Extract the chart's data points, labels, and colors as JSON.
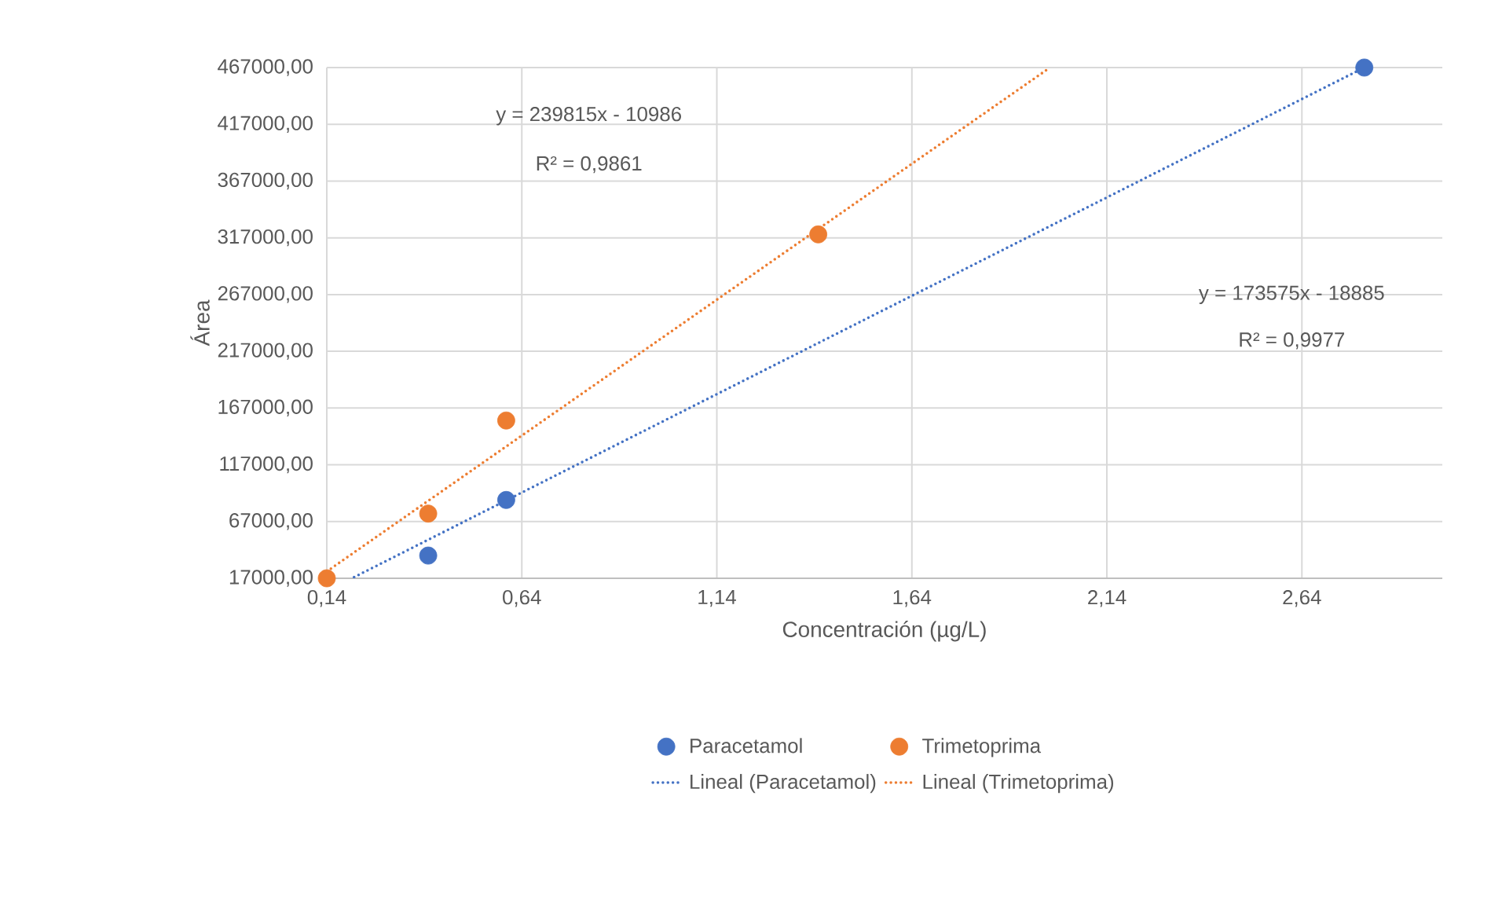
{
  "chart_data": {
    "type": "scatter",
    "xlabel": "Concentración (µg/L)",
    "ylabel": "Área",
    "xlim": [
      0.14,
      3.0
    ],
    "xticks": [
      {
        "value": 0.14,
        "label": "0,14"
      },
      {
        "value": 0.64,
        "label": "0,64"
      },
      {
        "value": 1.14,
        "label": "1,14"
      },
      {
        "value": 1.64,
        "label": "1,64"
      },
      {
        "value": 2.14,
        "label": "2,14"
      },
      {
        "value": 2.64,
        "label": "2,64"
      }
    ],
    "ylim": [
      17000,
      467000
    ],
    "yticks": [
      {
        "value": 17000,
        "label": "17000,00"
      },
      {
        "value": 67000,
        "label": "67000,00"
      },
      {
        "value": 117000,
        "label": "117000,00"
      },
      {
        "value": 167000,
        "label": "167000,00"
      },
      {
        "value": 217000,
        "label": "217000,00"
      },
      {
        "value": 267000,
        "label": "267000,00"
      },
      {
        "value": 317000,
        "label": "317000,00"
      },
      {
        "value": 367000,
        "label": "367000,00"
      },
      {
        "value": 417000,
        "label": "417000,00"
      },
      {
        "value": 467000,
        "label": "467000,00"
      }
    ],
    "grid": true,
    "legend": "bottom",
    "series": [
      {
        "name": "Paracetamol",
        "marker": "circle",
        "color": "#4472c4",
        "x": [
          0.4,
          0.6,
          2.8
        ],
        "values": [
          37000,
          86000,
          467000
        ]
      },
      {
        "name": "Trimetoprima",
        "marker": "circle",
        "color": "#ed7d31",
        "x": [
          0.14,
          0.4,
          0.6,
          1.4
        ],
        "values": [
          17000,
          74000,
          156000,
          320000
        ]
      },
      {
        "name": "Lineal (Paracetamol)",
        "type": "line",
        "marker": "none",
        "line_style": "dotted",
        "color": "#4472c4",
        "x": [
          0.21,
          2.8
        ],
        "values": [
          18000,
          467000
        ]
      },
      {
        "name": "Lineal (Trimetoprima)",
        "type": "line",
        "marker": "none",
        "line_style": "dotted",
        "color": "#ed7d31",
        "x": [
          0.14,
          1.99
        ],
        "values": [
          23000,
          466000
        ]
      }
    ],
    "annotations": [
      "y = 239815x - 10986",
      "R² = 0,9861",
      "y = 173575x - 18885",
      "R² = 0,9977"
    ]
  }
}
